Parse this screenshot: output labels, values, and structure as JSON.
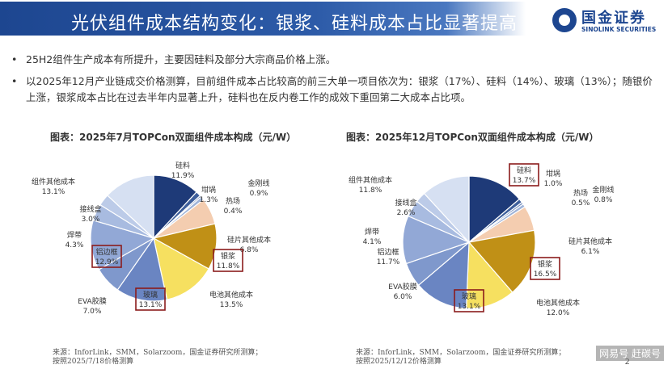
{
  "header": {
    "title": "光伏组件成本结构变化：银浆、硅料成本占比显著提高",
    "logo_cn": "国金证券",
    "logo_en": "SINOLINK SECURITIES"
  },
  "bullets": [
    "25H2组件生产成本有所提升，主要因硅料及部分大宗商品价格上涨。",
    "以2025年12月产业链成交价格测算，目前组件成本占比较高的前三大单一项目依次为：银浆（17%）、硅料（14%）、玻璃（13%）；随银价上涨，银浆成本占比在过去半年内显著上升，硅料也在反内卷工作的成效下重回第二大成本占比项。"
  ],
  "bullet_symbol": "•",
  "page_number": "2",
  "watermark": "网易号 赶碳号",
  "colors": {
    "title_bar": "#1d4690",
    "highlight_box": "#8b1c1c"
  },
  "chart_data": [
    {
      "type": "pie",
      "title": "图表：2025年7月TOPCon双面组件成本构成（元/W）",
      "slices": [
        {
          "label": "硅料",
          "value": 11.9,
          "color": "#1e3a78"
        },
        {
          "label": "坩埚",
          "value": 1.3,
          "color": "#3e5f9c"
        },
        {
          "label": "热场",
          "value": 0.4,
          "color": "#6f8bbf"
        },
        {
          "label": "金刚线",
          "value": 0.9,
          "color": "#9fb3d8"
        },
        {
          "label": "硅片其他成本",
          "value": 6.8,
          "color": "#f4cdb0"
        },
        {
          "label": "银浆",
          "value": 11.8,
          "color": "#c09016"
        },
        {
          "label": "电池其他成本",
          "value": 13.5,
          "color": "#f6e060"
        },
        {
          "label": "玻璃",
          "value": 13.1,
          "color": "#6a85c2"
        },
        {
          "label": "EVA胶膜",
          "value": 7.0,
          "color": "#7f98cc"
        },
        {
          "label": "铝边框",
          "value": 12.9,
          "color": "#92a8d6"
        },
        {
          "label": "焊带",
          "value": 4.3,
          "color": "#a8bbe0"
        },
        {
          "label": "接线盒",
          "value": 3.0,
          "color": "#bccbe8"
        },
        {
          "label": "组件其他成本",
          "value": 13.1,
          "color": "#d6e0f2"
        }
      ],
      "labels": [
        {
          "name": "硅料",
          "value": "11.9%",
          "boxed": false
        },
        {
          "name": "坩埚",
          "value": "1.3%",
          "boxed": false
        },
        {
          "name": "热场",
          "value": "0.4%",
          "boxed": false
        },
        {
          "name": "金刚线",
          "value": "0.9%",
          "boxed": false
        },
        {
          "name": "硅片其他成本",
          "value": "6.8%",
          "boxed": false
        },
        {
          "name": "银浆",
          "value": "11.8%",
          "boxed": true
        },
        {
          "name": "电池其他成本",
          "value": "13.5%",
          "boxed": false
        },
        {
          "name": "玻璃",
          "value": "13.1%",
          "boxed": true
        },
        {
          "name": "EVA胶膜",
          "value": "7.0%",
          "boxed": false
        },
        {
          "name": "铝边框",
          "value": "12.9%",
          "boxed": true
        },
        {
          "name": "焊带",
          "value": "4.3%",
          "boxed": false
        },
        {
          "name": "接线盒",
          "value": "3.0%",
          "boxed": false
        },
        {
          "name": "组件其他成本",
          "value": "13.1%",
          "boxed": false
        }
      ],
      "source": [
        "来源：InforLink，SMM，Solarzoom，国金证券研究所测算；",
        "按照2025/7/18价格测算"
      ]
    },
    {
      "type": "pie",
      "title": "图表：2025年12月TOPCon双面组件成本构成（元/W）",
      "slices": [
        {
          "label": "硅料",
          "value": 13.7,
          "color": "#1e3a78"
        },
        {
          "label": "坩埚",
          "value": 1.0,
          "color": "#3e5f9c"
        },
        {
          "label": "热场",
          "value": 0.5,
          "color": "#6f8bbf"
        },
        {
          "label": "金刚线",
          "value": 0.8,
          "color": "#9fb3d8"
        },
        {
          "label": "硅片其他成本",
          "value": 6.1,
          "color": "#f4cdb0"
        },
        {
          "label": "银浆",
          "value": 16.5,
          "color": "#c09016"
        },
        {
          "label": "电池其他成本",
          "value": 12.0,
          "color": "#f6e060"
        },
        {
          "label": "玻璃",
          "value": 13.1,
          "color": "#6a85c2"
        },
        {
          "label": "EVA胶膜",
          "value": 6.0,
          "color": "#7f98cc"
        },
        {
          "label": "铝边框",
          "value": 11.7,
          "color": "#92a8d6"
        },
        {
          "label": "焊带",
          "value": 4.1,
          "color": "#a8bbe0"
        },
        {
          "label": "接线盒",
          "value": 2.6,
          "color": "#bccbe8"
        },
        {
          "label": "组件其他成本",
          "value": 11.8,
          "color": "#d6e0f2"
        }
      ],
      "labels": [
        {
          "name": "硅料",
          "value": "13.7%",
          "boxed": true
        },
        {
          "name": "坩埚",
          "value": "1.0%",
          "boxed": false
        },
        {
          "name": "热场",
          "value": "0.5%",
          "boxed": false
        },
        {
          "name": "金刚线",
          "value": "0.8%",
          "boxed": false
        },
        {
          "name": "硅片其他成本",
          "value": "6.1%",
          "boxed": false
        },
        {
          "name": "银浆",
          "value": "16.5%",
          "boxed": true
        },
        {
          "name": "电池其他成本",
          "value": "12.0%",
          "boxed": false
        },
        {
          "name": "玻璃",
          "value": "13.1%",
          "boxed": true
        },
        {
          "name": "EVA胶膜",
          "value": "6.0%",
          "boxed": false
        },
        {
          "name": "铝边框",
          "value": "11.7%",
          "boxed": false
        },
        {
          "name": "焊带",
          "value": "4.1%",
          "boxed": false
        },
        {
          "name": "接线盒",
          "value": "2.6%",
          "boxed": false
        },
        {
          "name": "组件其他成本",
          "value": "11.8%",
          "boxed": false
        }
      ],
      "source": [
        "来源：InforLink，SMM，Solarzoom，国金证券研究所测算；",
        "按照2025/12/12价格测算"
      ]
    }
  ]
}
